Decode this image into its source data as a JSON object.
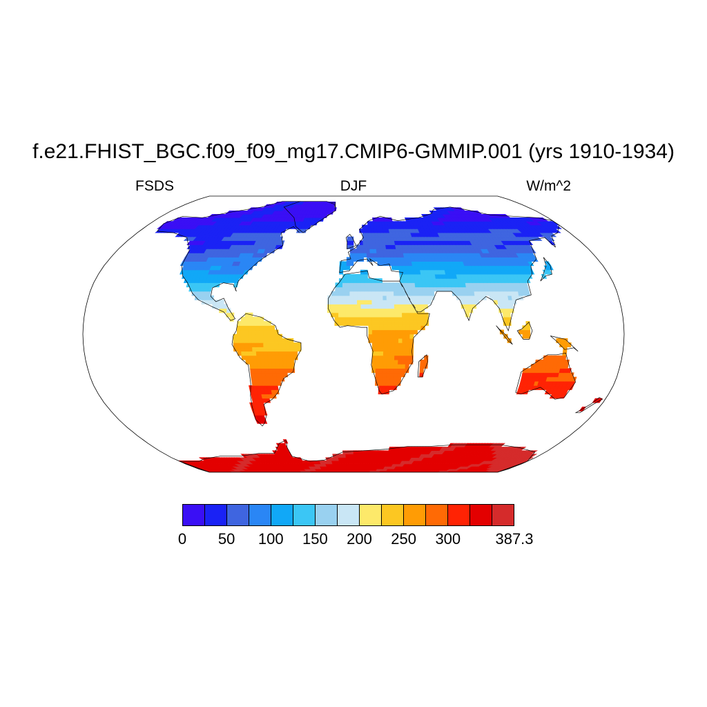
{
  "title": "f.e21.FHIST_BGC.f09_f09_mg17.CMIP6-GMMIP.001 (yrs 1910-1934)",
  "variable": "FSDS",
  "season": "DJF",
  "units": "W/m^2",
  "colorbar": {
    "colors": [
      "#3a0ff5",
      "#1a22f5",
      "#3f65e0",
      "#2a86f5",
      "#11a8f7",
      "#3bc6f5",
      "#99d1f0",
      "#c9e6f5",
      "#fde96a",
      "#fcc722",
      "#ff9c05",
      "#ff6a05",
      "#ff2304",
      "#e30000",
      "#d52b2b"
    ],
    "labels": [
      {
        "text": "0",
        "pos": 0
      },
      {
        "text": "50",
        "pos": 2
      },
      {
        "text": "100",
        "pos": 4
      },
      {
        "text": "150",
        "pos": 6
      },
      {
        "text": "200",
        "pos": 8
      },
      {
        "text": "250",
        "pos": 10
      },
      {
        "text": "300",
        "pos": 12
      },
      {
        "text": "387.3",
        "pos": 15
      }
    ]
  },
  "map": {
    "projection": "Robinson",
    "continents": [
      {
        "name": "North America",
        "polygon": [
          [
            -168,
            66
          ],
          [
            -160,
            71
          ],
          [
            -140,
            70
          ],
          [
            -120,
            74
          ],
          [
            -95,
            78
          ],
          [
            -80,
            83
          ],
          [
            -60,
            83
          ],
          [
            -45,
            82
          ],
          [
            -20,
            82
          ],
          [
            -18,
            76
          ],
          [
            -30,
            68
          ],
          [
            -45,
            60
          ],
          [
            -52,
            64
          ],
          [
            -60,
            60
          ],
          [
            -55,
            52
          ],
          [
            -66,
            45
          ],
          [
            -70,
            42
          ],
          [
            -76,
            36
          ],
          [
            -80,
            31
          ],
          [
            -81,
            26
          ],
          [
            -80,
            25
          ],
          [
            -83,
            29
          ],
          [
            -90,
            30
          ],
          [
            -97,
            27
          ],
          [
            -97,
            22
          ],
          [
            -93,
            19
          ],
          [
            -88,
            21
          ],
          [
            -84,
            15
          ],
          [
            -79,
            9
          ],
          [
            -82,
            8
          ],
          [
            -87,
            13
          ],
          [
            -95,
            16
          ],
          [
            -105,
            20
          ],
          [
            -110,
            24
          ],
          [
            -115,
            30
          ],
          [
            -120,
            34
          ],
          [
            -124,
            40
          ],
          [
            -125,
            49
          ],
          [
            -135,
            57
          ],
          [
            -150,
            60
          ],
          [
            -165,
            61
          ],
          [
            -168,
            66
          ]
        ]
      },
      {
        "name": "South America",
        "polygon": [
          [
            -77,
            8
          ],
          [
            -72,
            12
          ],
          [
            -62,
            10
          ],
          [
            -52,
            5
          ],
          [
            -50,
            0
          ],
          [
            -44,
            -3
          ],
          [
            -35,
            -5
          ],
          [
            -35,
            -9
          ],
          [
            -39,
            -15
          ],
          [
            -41,
            -22
          ],
          [
            -48,
            -26
          ],
          [
            -53,
            -34
          ],
          [
            -58,
            -38
          ],
          [
            -65,
            -41
          ],
          [
            -66,
            -48
          ],
          [
            -69,
            -52
          ],
          [
            -72,
            -54
          ],
          [
            -75,
            -50
          ],
          [
            -74,
            -42
          ],
          [
            -73,
            -36
          ],
          [
            -71,
            -29
          ],
          [
            -71,
            -18
          ],
          [
            -76,
            -14
          ],
          [
            -81,
            -6
          ],
          [
            -80,
            -1
          ],
          [
            -78,
            2
          ],
          [
            -77,
            8
          ]
        ]
      },
      {
        "name": "Europe-Asia",
        "polygon": [
          [
            -10,
            36
          ],
          [
            -9,
            43
          ],
          [
            -2,
            44
          ],
          [
            -4,
            48
          ],
          [
            2,
            51
          ],
          [
            5,
            54
          ],
          [
            8,
            57
          ],
          [
            5,
            62
          ],
          [
            14,
            68
          ],
          [
            25,
            71
          ],
          [
            40,
            68
          ],
          [
            60,
            70
          ],
          [
            75,
            73
          ],
          [
            80,
            76
          ],
          [
            100,
            78
          ],
          [
            112,
            76
          ],
          [
            130,
            72
          ],
          [
            150,
            71
          ],
          [
            170,
            70
          ],
          [
            180,
            68
          ],
          [
            180,
            65
          ],
          [
            170,
            60
          ],
          [
            162,
            58
          ],
          [
            156,
            51
          ],
          [
            155,
            57
          ],
          [
            140,
            55
          ],
          [
            135,
            44
          ],
          [
            128,
            40
          ],
          [
            126,
            35
          ],
          [
            121,
            31
          ],
          [
            121,
            23
          ],
          [
            110,
            20
          ],
          [
            106,
            11
          ],
          [
            103,
            2
          ],
          [
            100,
            8
          ],
          [
            98,
            15
          ],
          [
            94,
            20
          ],
          [
            90,
            22
          ],
          [
            80,
            15
          ],
          [
            77,
            8
          ],
          [
            72,
            20
          ],
          [
            67,
            25
          ],
          [
            57,
            25
          ],
          [
            52,
            17
          ],
          [
            45,
            13
          ],
          [
            43,
            13
          ],
          [
            34,
            27
          ],
          [
            32,
            31
          ],
          [
            35,
            36
          ],
          [
            27,
            37
          ],
          [
            26,
            41
          ],
          [
            19,
            40
          ],
          [
            12,
            44
          ],
          [
            14,
            40
          ],
          [
            10,
            44
          ],
          [
            3,
            43
          ],
          [
            -3,
            37
          ],
          [
            -10,
            36
          ]
        ]
      },
      {
        "name": "Africa",
        "polygon": [
          [
            -17,
            15
          ],
          [
            -17,
            21
          ],
          [
            -13,
            27
          ],
          [
            -10,
            30
          ],
          [
            -6,
            35
          ],
          [
            10,
            37
          ],
          [
            11,
            33
          ],
          [
            20,
            31
          ],
          [
            32,
            31
          ],
          [
            34,
            28
          ],
          [
            38,
            20
          ],
          [
            43,
            12
          ],
          [
            51,
            12
          ],
          [
            49,
            6
          ],
          [
            40,
            -2
          ],
          [
            39,
            -10
          ],
          [
            40,
            -16
          ],
          [
            35,
            -24
          ],
          [
            32,
            -29
          ],
          [
            28,
            -33
          ],
          [
            20,
            -35
          ],
          [
            18,
            -33
          ],
          [
            15,
            -26
          ],
          [
            12,
            -18
          ],
          [
            13,
            -10
          ],
          [
            9,
            -1
          ],
          [
            9,
            4
          ],
          [
            5,
            4
          ],
          [
            -4,
            5
          ],
          [
            -9,
            4
          ],
          [
            -13,
            8
          ],
          [
            -17,
            15
          ]
        ]
      },
      {
        "name": "Madagascar",
        "polygon": [
          [
            44,
            -25
          ],
          [
            47,
            -25
          ],
          [
            50,
            -16
          ],
          [
            49,
            -12
          ],
          [
            44,
            -16
          ],
          [
            44,
            -25
          ]
        ]
      },
      {
        "name": "Australia",
        "polygon": [
          [
            114,
            -22
          ],
          [
            114,
            -34
          ],
          [
            118,
            -35
          ],
          [
            130,
            -31
          ],
          [
            138,
            -35
          ],
          [
            144,
            -38
          ],
          [
            150,
            -37
          ],
          [
            153,
            -28
          ],
          [
            146,
            -19
          ],
          [
            142,
            -11
          ],
          [
            136,
            -12
          ],
          [
            130,
            -12
          ],
          [
            122,
            -17
          ],
          [
            114,
            -22
          ]
        ]
      },
      {
        "name": "Greenland",
        "polygon": [
          [
            -72,
            78
          ],
          [
            -60,
            83
          ],
          [
            -30,
            83
          ],
          [
            -20,
            80
          ],
          [
            -18,
            75
          ],
          [
            -30,
            68
          ],
          [
            -42,
            60
          ],
          [
            -50,
            64
          ],
          [
            -55,
            70
          ],
          [
            -72,
            78
          ]
        ]
      },
      {
        "name": "Borneo",
        "polygon": [
          [
            109,
            2
          ],
          [
            113,
            -3
          ],
          [
            117,
            -3
          ],
          [
            119,
            2
          ],
          [
            117,
            7
          ],
          [
            112,
            3
          ],
          [
            109,
            2
          ]
        ]
      },
      {
        "name": "Sumatra",
        "polygon": [
          [
            95,
            5
          ],
          [
            103,
            -4
          ],
          [
            106,
            -6
          ],
          [
            102,
            -1
          ],
          [
            97,
            3
          ],
          [
            95,
            5
          ]
        ]
      },
      {
        "name": "New Guinea",
        "polygon": [
          [
            131,
            -1
          ],
          [
            141,
            -3
          ],
          [
            150,
            -10
          ],
          [
            147,
            -8
          ],
          [
            141,
            -9
          ],
          [
            135,
            -4
          ],
          [
            131,
            -1
          ]
        ]
      },
      {
        "name": "Japan",
        "polygon": [
          [
            130,
            31
          ],
          [
            135,
            34
          ],
          [
            140,
            35
          ],
          [
            142,
            40
          ],
          [
            141,
            45
          ],
          [
            139,
            40
          ],
          [
            133,
            34
          ],
          [
            130,
            31
          ]
        ]
      },
      {
        "name": "New Zealand",
        "polygon": [
          [
            166,
            -46
          ],
          [
            172,
            -41
          ],
          [
            175,
            -37
          ],
          [
            178,
            -38
          ],
          [
            174,
            -41
          ],
          [
            169,
            -46
          ],
          [
            166,
            -46
          ]
        ]
      },
      {
        "name": "UK",
        "polygon": [
          [
            -5,
            50
          ],
          [
            2,
            52
          ],
          [
            -1,
            57
          ],
          [
            -3,
            59
          ],
          [
            -6,
            57
          ],
          [
            -5,
            54
          ],
          [
            -5,
            50
          ]
        ]
      },
      {
        "name": "Antarctica",
        "polygon": [
          [
            -180,
            -90
          ],
          [
            -180,
            -78
          ],
          [
            -160,
            -78
          ],
          [
            -150,
            -76
          ],
          [
            -130,
            -74
          ],
          [
            -110,
            -74
          ],
          [
            -90,
            -72
          ],
          [
            -75,
            -72
          ],
          [
            -65,
            -65
          ],
          [
            -58,
            -63
          ],
          [
            -60,
            -68
          ],
          [
            -60,
            -74
          ],
          [
            -45,
            -78
          ],
          [
            -30,
            -77
          ],
          [
            -10,
            -71
          ],
          [
            10,
            -70
          ],
          [
            30,
            -69
          ],
          [
            50,
            -67
          ],
          [
            70,
            -67
          ],
          [
            90,
            -66
          ],
          [
            110,
            -66
          ],
          [
            130,
            -66
          ],
          [
            150,
            -68
          ],
          [
            170,
            -71
          ],
          [
            180,
            -78
          ],
          [
            180,
            -90
          ],
          [
            -180,
            -90
          ]
        ]
      }
    ]
  }
}
